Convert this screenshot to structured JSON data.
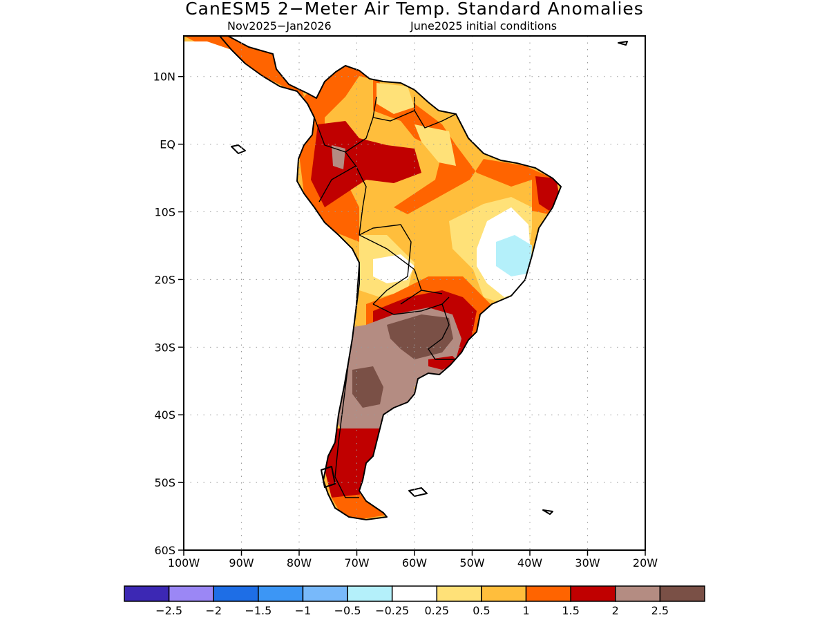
{
  "title": "CanESM5 2−Meter Air Temp. Standard Anomalies",
  "subtitle_left": "Nov2025−Jan2026",
  "subtitle_right": "June2025 initial conditions",
  "map": {
    "lon_range": [
      -100,
      -20
    ],
    "lat_range": [
      -60,
      16
    ],
    "lat_ticks": [
      {
        "value": 10,
        "label": "10N"
      },
      {
        "value": 0,
        "label": "EQ"
      },
      {
        "value": -10,
        "label": "10S"
      },
      {
        "value": -20,
        "label": "20S"
      },
      {
        "value": -30,
        "label": "30S"
      },
      {
        "value": -40,
        "label": "40S"
      },
      {
        "value": -50,
        "label": "50S"
      },
      {
        "value": -60,
        "label": "60S"
      }
    ],
    "lon_ticks": [
      {
        "value": -100,
        "label": "100W"
      },
      {
        "value": -90,
        "label": "90W"
      },
      {
        "value": -80,
        "label": "80W"
      },
      {
        "value": -70,
        "label": "70W"
      },
      {
        "value": -60,
        "label": "60W"
      },
      {
        "value": -50,
        "label": "50W"
      },
      {
        "value": -40,
        "label": "40W"
      },
      {
        "value": -30,
        "label": "30W"
      },
      {
        "value": -20,
        "label": "20W"
      }
    ]
  },
  "colorbar": {
    "colors": [
      "#3c28b4",
      "#9b87f5",
      "#1e6ee6",
      "#3c96f5",
      "#78b9fa",
      "#b4f0fa",
      "#ffffff",
      "#ffe178",
      "#ffbe3c",
      "#ff6400",
      "#c00000",
      "#b48c82",
      "#7a5046"
    ],
    "labels": [
      "−2.5",
      "−2",
      "−1.5",
      "−1",
      "−0.5",
      "−0.25",
      "0.25",
      "0.5",
      "1",
      "1.5",
      "2",
      "2.5"
    ]
  }
}
